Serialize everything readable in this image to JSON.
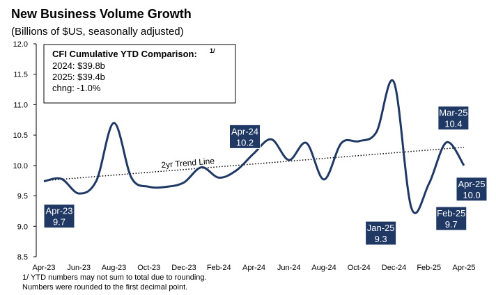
{
  "chart_data": {
    "type": "line",
    "title": "New Business Volume Growth",
    "subtitle": "(Billions of $US, seasonally adjusted)",
    "categories": [
      "Apr-23",
      null,
      "Jun-23",
      null,
      "Aug-23",
      null,
      "Oct-23",
      null,
      "Dec-23",
      null,
      "Feb-24",
      null,
      "Apr-24",
      null,
      "Jun-24",
      null,
      "Aug-24",
      null,
      "Oct-24",
      null,
      "Dec-24",
      null,
      "Feb-25",
      null,
      "Apr-25"
    ],
    "series": [
      {
        "name": "New Business Volume",
        "color": "#1f3864",
        "values": [
          9.74,
          9.78,
          9.54,
          9.75,
          10.7,
          9.8,
          9.65,
          9.65,
          9.72,
          9.97,
          9.8,
          9.92,
          10.2,
          10.43,
          10.09,
          10.37,
          9.77,
          10.37,
          10.4,
          10.55,
          11.37,
          9.3,
          9.7,
          10.38,
          10.0
        ],
        "callout_names": [
          "Apr-23",
          null,
          null,
          null,
          null,
          null,
          null,
          null,
          null,
          null,
          null,
          null,
          "Apr-24",
          null,
          null,
          null,
          null,
          null,
          null,
          null,
          null,
          "Jan-25",
          "Feb-25",
          "Mar-25",
          "Apr-25"
        ],
        "value_labels": [
          "9.7",
          null,
          null,
          null,
          null,
          null,
          null,
          null,
          null,
          null,
          null,
          null,
          "10.2",
          null,
          null,
          null,
          null,
          null,
          null,
          null,
          null,
          "9.3",
          "9.7",
          "10.4",
          "10.0"
        ]
      }
    ],
    "trend_line": {
      "label": "2yr Trend Line",
      "values": [
        9.75,
        10.3
      ]
    },
    "ylim": [
      8.5,
      12.0
    ],
    "yticks": [
      {
        "value": 12,
        "label": "12.0"
      },
      11.5,
      {
        "value": 11,
        "label": "11.0"
      },
      10.5,
      {
        "value": 10,
        "label": "10.0"
      },
      9.5,
      {
        "value": 9,
        "label": "9.0"
      },
      8.5
    ],
    "annotation": {
      "title": "CFI Cumulative YTD Comparison:",
      "superscript": "1/",
      "lines": [
        "2024: $39.8b",
        "2025: $39.4b",
        "chng: -1.0%"
      ]
    },
    "footnotes": [
      "1/ YTD numbers may not sum to total due to rounding.",
      "Numbers were rounded to the first decimal point."
    ]
  }
}
